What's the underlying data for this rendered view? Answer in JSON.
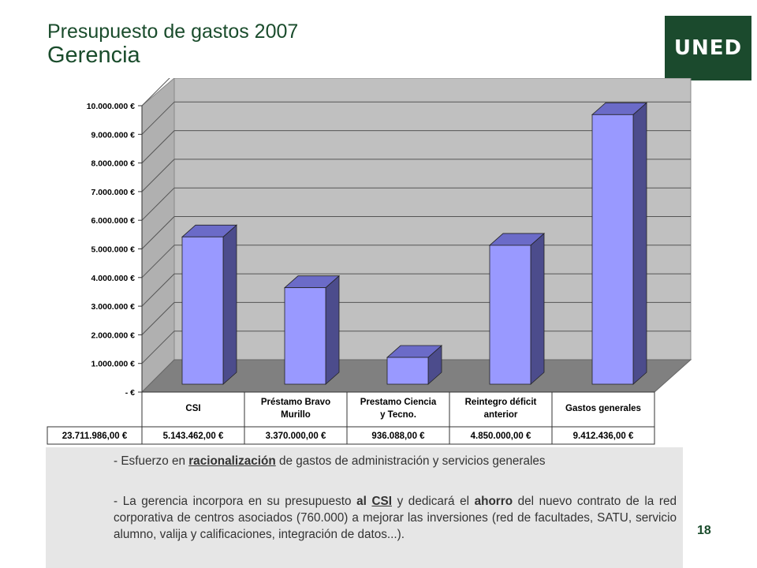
{
  "header": {
    "title_line1": "Presupuesto de gastos 2007",
    "title_line2": "Gerencia"
  },
  "logo": {
    "text": "UNED"
  },
  "colors": {
    "accent_green": "#1a4c2c",
    "bar_front": "#9999ff",
    "bar_side": "#4c4c8c",
    "bar_top": "#6b6bc8",
    "wall": "#c0c0c0",
    "floor": "#808080"
  },
  "chart_data": {
    "type": "bar",
    "style": "3d-column with data table",
    "categories": [
      "CSI",
      "Préstamo Bravo Murillo",
      "Prestamo Ciencia y Tecno.",
      "Reintegro déficit anterior",
      "Gastos generales"
    ],
    "category_lines": [
      [
        "CSI"
      ],
      [
        "Préstamo Bravo",
        "Murillo"
      ],
      [
        "Prestamo Ciencia",
        "y Tecno."
      ],
      [
        "Reintegro déficit",
        "anterior"
      ],
      [
        "Gastos generales"
      ]
    ],
    "values": [
      5143462.0,
      3370000.0,
      936088.0,
      4850000.0,
      9412436.0
    ],
    "value_labels": [
      "5.143.462,00 €",
      "3.370.000,00 €",
      "936.088,00 €",
      "4.850.000,00 €",
      "9.412.436,00 €"
    ],
    "total_label": "23.711.986,00 €",
    "ylim": [
      0,
      10000000
    ],
    "yticks": [
      0,
      1000000,
      2000000,
      3000000,
      4000000,
      5000000,
      6000000,
      7000000,
      8000000,
      9000000,
      10000000
    ],
    "ytick_labels": [
      "- €",
      "1.000.000 €",
      "2.000.000 €",
      "3.000.000 €",
      "4.000.000 €",
      "5.000.000 €",
      "6.000.000 €",
      "7.000.000 €",
      "8.000.000 €",
      "9.000.000 €",
      "10.000.000 €"
    ],
    "grid": true,
    "legend": "none"
  },
  "body": {
    "b1_pre": "- Esfuerzo en ",
    "b1_link": "racionalización",
    "b1_post": " de gastos de administración y servicios generales",
    "b2_p1": "- La gerencia incorpora en su presupuesto ",
    "b2_al": "al",
    "b2_csi": "CSI",
    "b2_p2": " y dedicará el ",
    "b2_ahorro": "ahorro",
    "b2_p3": " del nuevo contrato de la red corporativa de centros asociados (760.000) a mejorar las inversiones (red de facultades, SATU, servicio alumno, valija y calificaciones, integración de datos...)."
  },
  "page_number": "18"
}
